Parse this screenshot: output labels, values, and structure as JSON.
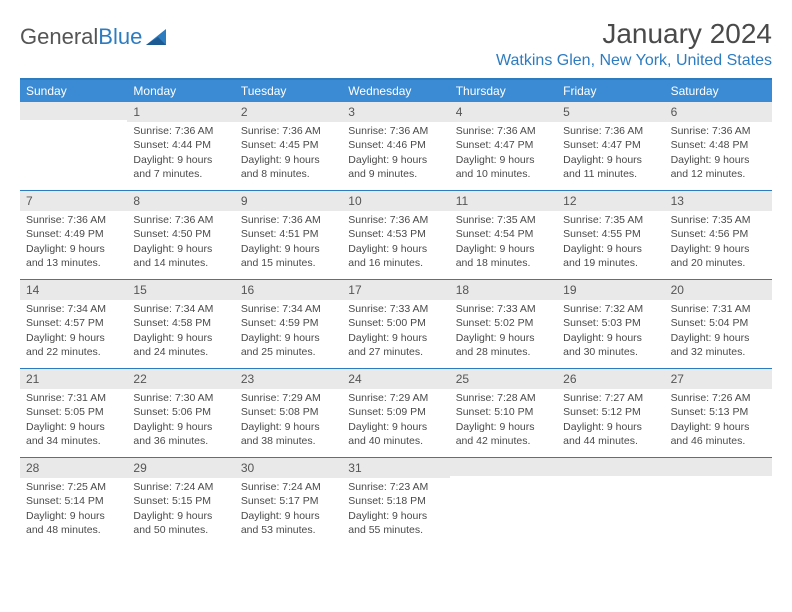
{
  "logo": {
    "text_gray": "General",
    "text_blue": "Blue"
  },
  "title": "January 2024",
  "location": "Watkins Glen, New York, United States",
  "colors": {
    "header_bg": "#3b8bd4",
    "header_text": "#ffffff",
    "rule": "#2e7cc0",
    "daynum_bg": "#e9e9e9",
    "body_text": "#4a4a4a",
    "location_text": "#2e7cc0"
  },
  "day_headers": [
    "Sunday",
    "Monday",
    "Tuesday",
    "Wednesday",
    "Thursday",
    "Friday",
    "Saturday"
  ],
  "weeks": [
    [
      {
        "n": "",
        "sunrise": "",
        "sunset": "",
        "daylight": ""
      },
      {
        "n": "1",
        "sunrise": "Sunrise: 7:36 AM",
        "sunset": "Sunset: 4:44 PM",
        "daylight": "Daylight: 9 hours and 7 minutes."
      },
      {
        "n": "2",
        "sunrise": "Sunrise: 7:36 AM",
        "sunset": "Sunset: 4:45 PM",
        "daylight": "Daylight: 9 hours and 8 minutes."
      },
      {
        "n": "3",
        "sunrise": "Sunrise: 7:36 AM",
        "sunset": "Sunset: 4:46 PM",
        "daylight": "Daylight: 9 hours and 9 minutes."
      },
      {
        "n": "4",
        "sunrise": "Sunrise: 7:36 AM",
        "sunset": "Sunset: 4:47 PM",
        "daylight": "Daylight: 9 hours and 10 minutes."
      },
      {
        "n": "5",
        "sunrise": "Sunrise: 7:36 AM",
        "sunset": "Sunset: 4:47 PM",
        "daylight": "Daylight: 9 hours and 11 minutes."
      },
      {
        "n": "6",
        "sunrise": "Sunrise: 7:36 AM",
        "sunset": "Sunset: 4:48 PM",
        "daylight": "Daylight: 9 hours and 12 minutes."
      }
    ],
    [
      {
        "n": "7",
        "sunrise": "Sunrise: 7:36 AM",
        "sunset": "Sunset: 4:49 PM",
        "daylight": "Daylight: 9 hours and 13 minutes."
      },
      {
        "n": "8",
        "sunrise": "Sunrise: 7:36 AM",
        "sunset": "Sunset: 4:50 PM",
        "daylight": "Daylight: 9 hours and 14 minutes."
      },
      {
        "n": "9",
        "sunrise": "Sunrise: 7:36 AM",
        "sunset": "Sunset: 4:51 PM",
        "daylight": "Daylight: 9 hours and 15 minutes."
      },
      {
        "n": "10",
        "sunrise": "Sunrise: 7:36 AM",
        "sunset": "Sunset: 4:53 PM",
        "daylight": "Daylight: 9 hours and 16 minutes."
      },
      {
        "n": "11",
        "sunrise": "Sunrise: 7:35 AM",
        "sunset": "Sunset: 4:54 PM",
        "daylight": "Daylight: 9 hours and 18 minutes."
      },
      {
        "n": "12",
        "sunrise": "Sunrise: 7:35 AM",
        "sunset": "Sunset: 4:55 PM",
        "daylight": "Daylight: 9 hours and 19 minutes."
      },
      {
        "n": "13",
        "sunrise": "Sunrise: 7:35 AM",
        "sunset": "Sunset: 4:56 PM",
        "daylight": "Daylight: 9 hours and 20 minutes."
      }
    ],
    [
      {
        "n": "14",
        "sunrise": "Sunrise: 7:34 AM",
        "sunset": "Sunset: 4:57 PM",
        "daylight": "Daylight: 9 hours and 22 minutes."
      },
      {
        "n": "15",
        "sunrise": "Sunrise: 7:34 AM",
        "sunset": "Sunset: 4:58 PM",
        "daylight": "Daylight: 9 hours and 24 minutes."
      },
      {
        "n": "16",
        "sunrise": "Sunrise: 7:34 AM",
        "sunset": "Sunset: 4:59 PM",
        "daylight": "Daylight: 9 hours and 25 minutes."
      },
      {
        "n": "17",
        "sunrise": "Sunrise: 7:33 AM",
        "sunset": "Sunset: 5:00 PM",
        "daylight": "Daylight: 9 hours and 27 minutes."
      },
      {
        "n": "18",
        "sunrise": "Sunrise: 7:33 AM",
        "sunset": "Sunset: 5:02 PM",
        "daylight": "Daylight: 9 hours and 28 minutes."
      },
      {
        "n": "19",
        "sunrise": "Sunrise: 7:32 AM",
        "sunset": "Sunset: 5:03 PM",
        "daylight": "Daylight: 9 hours and 30 minutes."
      },
      {
        "n": "20",
        "sunrise": "Sunrise: 7:31 AM",
        "sunset": "Sunset: 5:04 PM",
        "daylight": "Daylight: 9 hours and 32 minutes."
      }
    ],
    [
      {
        "n": "21",
        "sunrise": "Sunrise: 7:31 AM",
        "sunset": "Sunset: 5:05 PM",
        "daylight": "Daylight: 9 hours and 34 minutes."
      },
      {
        "n": "22",
        "sunrise": "Sunrise: 7:30 AM",
        "sunset": "Sunset: 5:06 PM",
        "daylight": "Daylight: 9 hours and 36 minutes."
      },
      {
        "n": "23",
        "sunrise": "Sunrise: 7:29 AM",
        "sunset": "Sunset: 5:08 PM",
        "daylight": "Daylight: 9 hours and 38 minutes."
      },
      {
        "n": "24",
        "sunrise": "Sunrise: 7:29 AM",
        "sunset": "Sunset: 5:09 PM",
        "daylight": "Daylight: 9 hours and 40 minutes."
      },
      {
        "n": "25",
        "sunrise": "Sunrise: 7:28 AM",
        "sunset": "Sunset: 5:10 PM",
        "daylight": "Daylight: 9 hours and 42 minutes."
      },
      {
        "n": "26",
        "sunrise": "Sunrise: 7:27 AM",
        "sunset": "Sunset: 5:12 PM",
        "daylight": "Daylight: 9 hours and 44 minutes."
      },
      {
        "n": "27",
        "sunrise": "Sunrise: 7:26 AM",
        "sunset": "Sunset: 5:13 PM",
        "daylight": "Daylight: 9 hours and 46 minutes."
      }
    ],
    [
      {
        "n": "28",
        "sunrise": "Sunrise: 7:25 AM",
        "sunset": "Sunset: 5:14 PM",
        "daylight": "Daylight: 9 hours and 48 minutes."
      },
      {
        "n": "29",
        "sunrise": "Sunrise: 7:24 AM",
        "sunset": "Sunset: 5:15 PM",
        "daylight": "Daylight: 9 hours and 50 minutes."
      },
      {
        "n": "30",
        "sunrise": "Sunrise: 7:24 AM",
        "sunset": "Sunset: 5:17 PM",
        "daylight": "Daylight: 9 hours and 53 minutes."
      },
      {
        "n": "31",
        "sunrise": "Sunrise: 7:23 AM",
        "sunset": "Sunset: 5:18 PM",
        "daylight": "Daylight: 9 hours and 55 minutes."
      },
      {
        "n": "",
        "sunrise": "",
        "sunset": "",
        "daylight": ""
      },
      {
        "n": "",
        "sunrise": "",
        "sunset": "",
        "daylight": ""
      },
      {
        "n": "",
        "sunrise": "",
        "sunset": "",
        "daylight": ""
      }
    ]
  ]
}
